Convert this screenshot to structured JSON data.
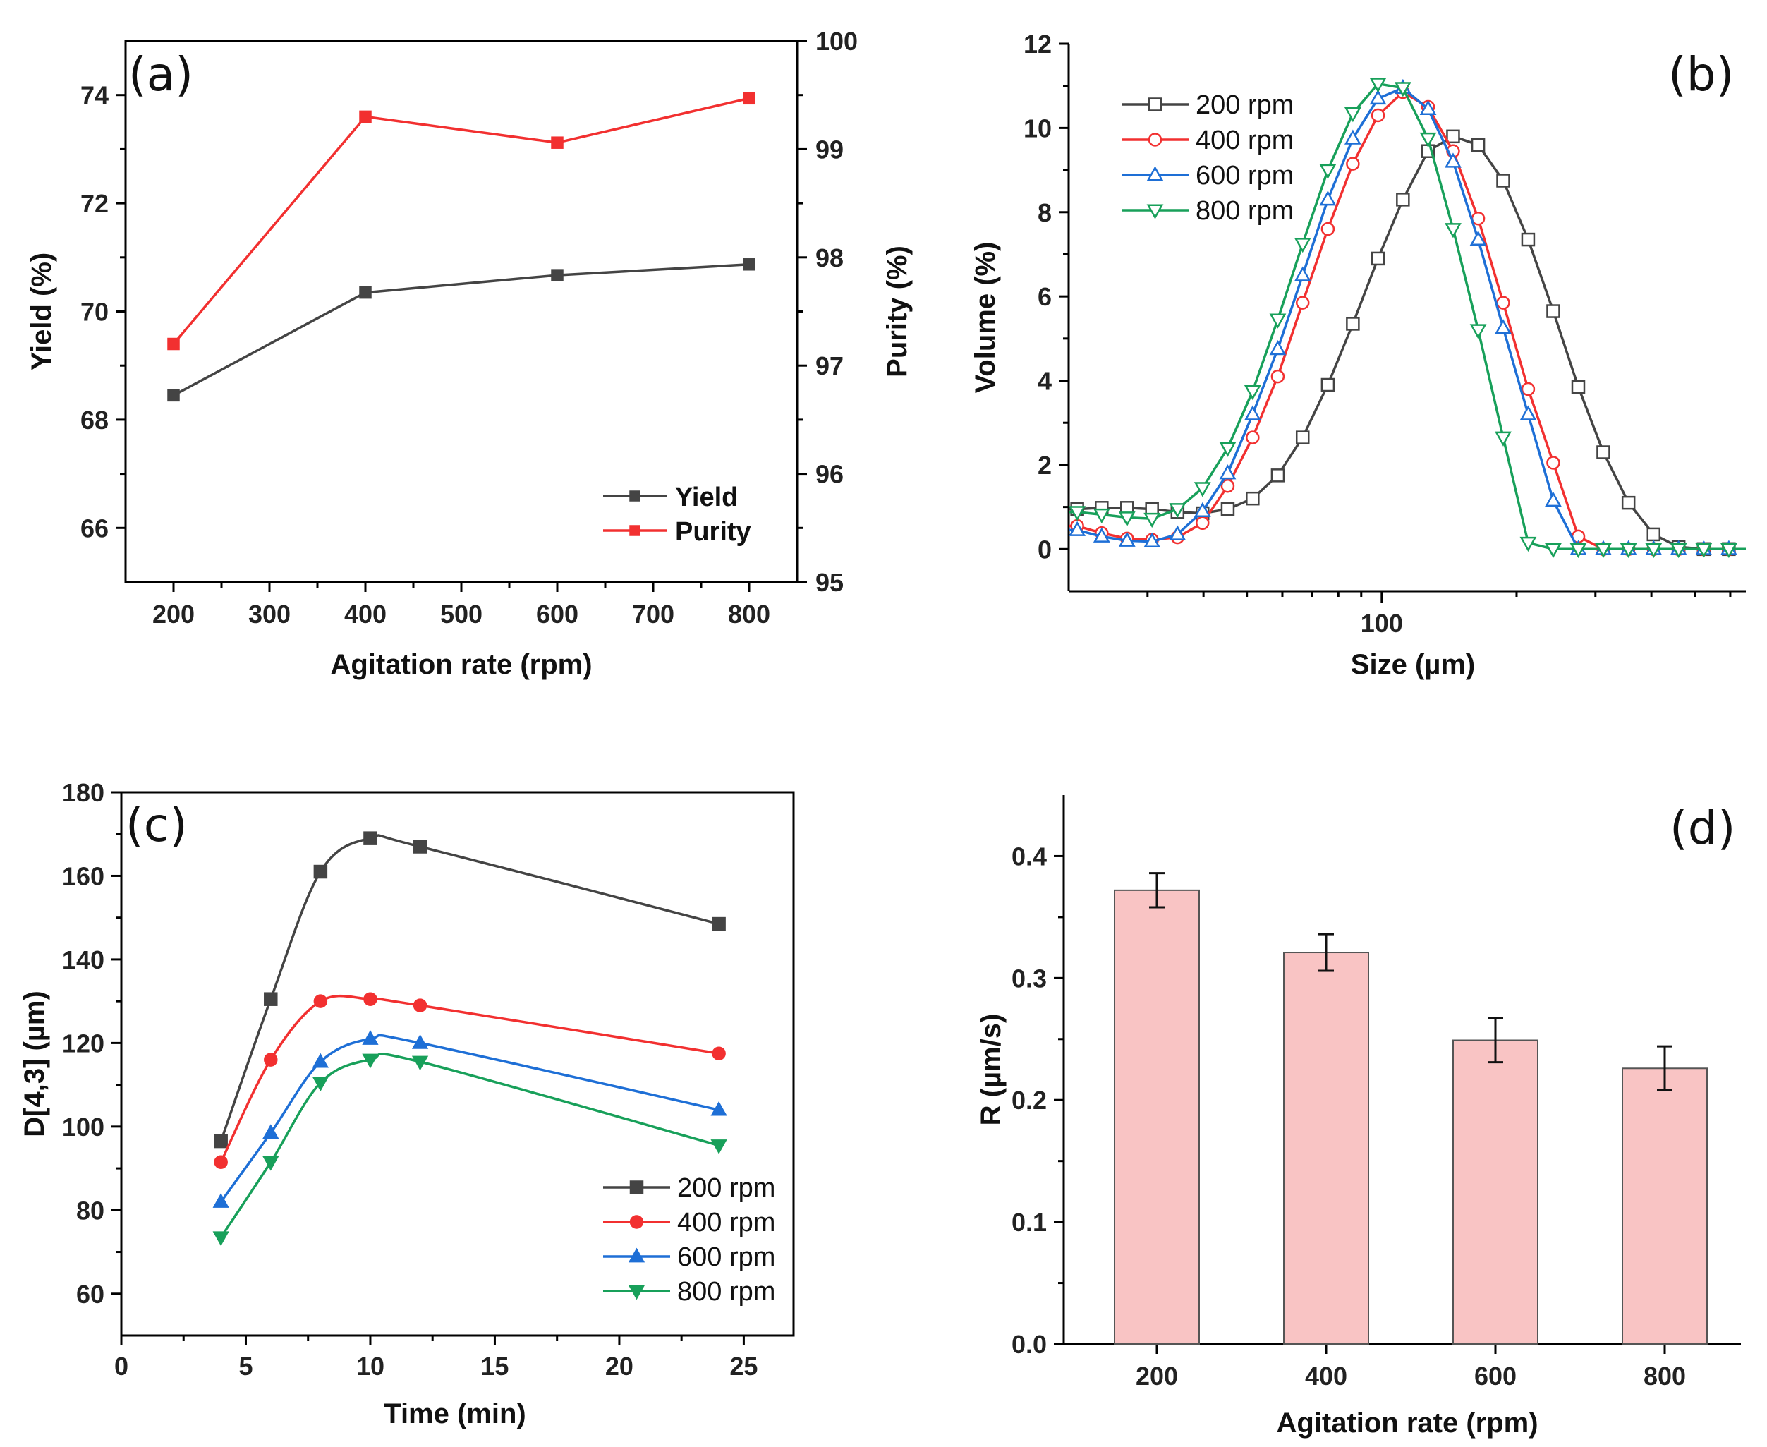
{
  "chart_data": [
    {
      "panel": "(a)",
      "type": "line",
      "xlabel": "Agitation rate (rpm)",
      "ylabel": "Yield (%)",
      "y2label": "Purity (%)",
      "xlim": [
        150,
        850
      ],
      "ylim": [
        65,
        75
      ],
      "y2lim": [
        95,
        100
      ],
      "xticks": [
        200,
        300,
        400,
        500,
        600,
        700,
        800
      ],
      "yticks": [
        66,
        68,
        70,
        72,
        74
      ],
      "y2ticks": [
        95,
        96,
        97,
        98,
        99,
        100
      ],
      "legend_position": "bottom-right",
      "series": [
        {
          "name": "Yield",
          "axis": "left",
          "color": "#444444",
          "x": [
            200,
            400,
            600,
            800
          ],
          "values": [
            68.45,
            70.35,
            70.67,
            70.87
          ]
        },
        {
          "name": "Purity",
          "axis": "right",
          "color": "#f23030",
          "x": [
            200,
            400,
            600,
            800
          ],
          "values": [
            97.2,
            99.3,
            99.06,
            99.47
          ]
        }
      ]
    },
    {
      "panel": "(b)",
      "type": "line",
      "xscale": "log",
      "xlabel": "Size (µm)",
      "ylabel": "Volume (%)",
      "xlim": [
        20,
        650
      ],
      "ylim": [
        -1,
        12
      ],
      "xticks": [
        100
      ],
      "yticks": [
        0,
        2,
        4,
        6,
        8,
        10,
        12
      ],
      "legend_position": "top-left",
      "series": [
        {
          "name": "200 rpm",
          "color": "#444444",
          "marker": "square",
          "x": [
            20.9,
            23.7,
            27,
            30.7,
            35,
            39.8,
            45.3,
            51.5,
            58.6,
            66.6,
            75.8,
            86.2,
            98.1,
            111.5,
            126.9,
            144.3,
            164.2,
            186.7,
            212.3,
            241.5,
            274.7,
            312.4,
            355.6,
            404.6,
            460,
            523.5,
            595.6
          ],
          "values": [
            0.95,
            0.98,
            0.98,
            0.95,
            0.88,
            0.85,
            0.95,
            1.2,
            1.75,
            2.65,
            3.9,
            5.35,
            6.9,
            8.3,
            9.45,
            9.8,
            9.6,
            8.75,
            7.35,
            5.65,
            3.85,
            2.3,
            1.1,
            0.35,
            0.05,
            0,
            0
          ]
        },
        {
          "name": "400 rpm",
          "color": "#f23030",
          "marker": "circle",
          "x": [
            20.9,
            23.7,
            27,
            30.7,
            35,
            39.8,
            45.3,
            51.5,
            58.6,
            66.6,
            75.8,
            86.2,
            98.1,
            111.5,
            126.9,
            144.3,
            164.2,
            186.7,
            212.3,
            241.5,
            274.7,
            312.4,
            355.6,
            404.6,
            460,
            523.5,
            595.6
          ],
          "values": [
            0.55,
            0.38,
            0.25,
            0.22,
            0.28,
            0.62,
            1.5,
            2.65,
            4.1,
            5.85,
            7.6,
            9.15,
            10.3,
            10.85,
            10.5,
            9.45,
            7.85,
            5.85,
            3.8,
            2.05,
            0.3,
            0,
            0,
            0,
            0,
            0,
            0
          ]
        },
        {
          "name": "600 rpm",
          "color": "#1e6fd6",
          "marker": "triangle-up",
          "x": [
            20.9,
            23.7,
            27,
            30.7,
            35,
            39.8,
            45.3,
            51.5,
            58.6,
            66.6,
            75.8,
            86.2,
            98.1,
            111.5,
            126.9,
            144.3,
            164.2,
            186.7,
            212.3,
            241.5,
            274.7,
            312.4,
            355.6,
            404.6,
            460,
            523.5,
            595.6
          ],
          "values": [
            0.45,
            0.3,
            0.2,
            0.18,
            0.35,
            0.9,
            1.8,
            3.2,
            4.75,
            6.5,
            8.3,
            9.75,
            10.7,
            10.95,
            10.45,
            9.2,
            7.35,
            5.25,
            3.2,
            1.15,
            0,
            0,
            0,
            0,
            0,
            0,
            0
          ]
        },
        {
          "name": "800 rpm",
          "color": "#18a05a",
          "marker": "triangle-down",
          "x": [
            20.9,
            23.7,
            27,
            30.7,
            35,
            39.8,
            45.3,
            51.5,
            58.6,
            66.6,
            75.8,
            86.2,
            98.1,
            111.5,
            126.9,
            144.3,
            164.2,
            186.7,
            212.3,
            241.5,
            274.7,
            312.4,
            355.6,
            404.6,
            460,
            523.5,
            595.6
          ],
          "values": [
            0.88,
            0.82,
            0.75,
            0.72,
            0.95,
            1.45,
            2.4,
            3.75,
            5.45,
            7.25,
            9.0,
            10.35,
            11.05,
            10.95,
            9.75,
            7.6,
            5.2,
            2.65,
            0.15,
            0,
            0,
            0,
            0,
            0,
            0,
            0,
            0
          ]
        }
      ]
    },
    {
      "panel": "(c)",
      "type": "line",
      "xlabel": "Time (min)",
      "ylabel": "D[4,3] (µm)",
      "xlim": [
        0,
        27
      ],
      "ylim": [
        50,
        180
      ],
      "xticks": [
        0,
        5,
        10,
        15,
        20,
        25
      ],
      "yticks": [
        60,
        80,
        100,
        120,
        140,
        160,
        180
      ],
      "legend_position": "bottom-right",
      "x": [
        4,
        6,
        8,
        10,
        12,
        24
      ],
      "series": [
        {
          "name": "200 rpm",
          "color": "#444444",
          "marker": "square",
          "values": [
            96.5,
            130.5,
            161,
            169,
            167,
            148.5
          ]
        },
        {
          "name": "400 rpm",
          "color": "#f23030",
          "marker": "circle",
          "values": [
            91.5,
            116,
            130,
            130.5,
            129,
            117.5
          ]
        },
        {
          "name": "600 rpm",
          "color": "#1e6fd6",
          "marker": "triangle-up",
          "values": [
            82,
            98.5,
            115.5,
            121,
            120,
            104
          ]
        },
        {
          "name": "800 rpm",
          "color": "#18a05a",
          "marker": "triangle-down",
          "values": [
            73.5,
            91.5,
            110.5,
            116,
            115.5,
            95.5
          ]
        }
      ]
    },
    {
      "panel": "(d)",
      "type": "bar",
      "xlabel": "Agitation rate (rpm)",
      "ylabel": "R (µm/s)",
      "ylim": [
        0,
        0.45
      ],
      "yticks": [
        "0.0",
        "0.1",
        "0.2",
        "0.3",
        "0.4"
      ],
      "categories": [
        "200",
        "400",
        "600",
        "800"
      ],
      "values": [
        0.372,
        0.321,
        0.249,
        0.226
      ],
      "errors": [
        0.014,
        0.015,
        0.018,
        0.018
      ],
      "bar_color": "#f9c4c4"
    }
  ]
}
